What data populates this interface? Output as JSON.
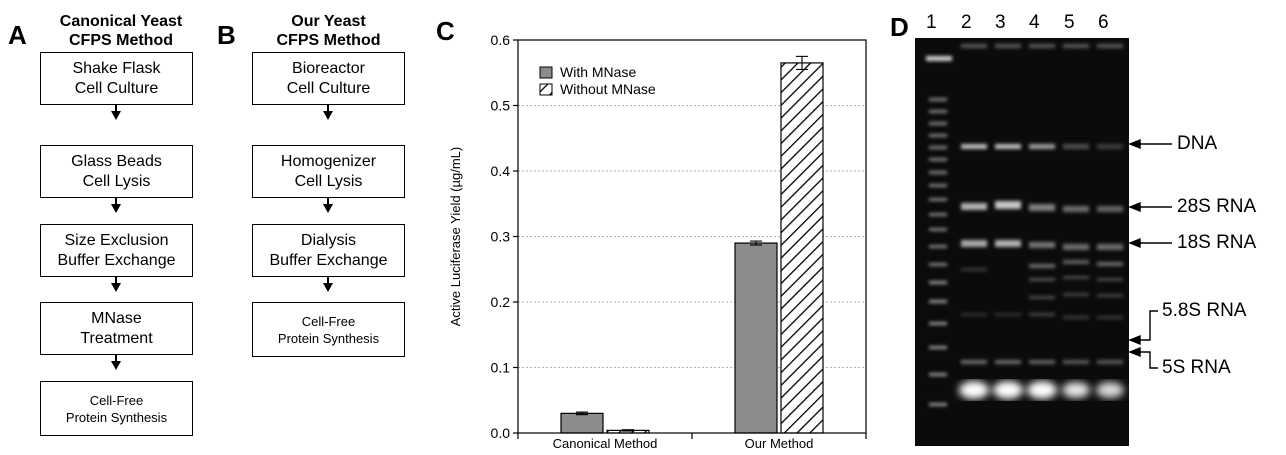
{
  "panel_a": {
    "letter": "A",
    "title_line1": "Canonical Yeast",
    "title_line2": "CFPS Method",
    "steps": [
      "Shake Flask\nCell Culture",
      "Glass Beads\nCell Lysis",
      "Size Exclusion\nBuffer Exchange",
      "MNase\nTreatment",
      "Cell-Free\nProtein Synthesis"
    ]
  },
  "panel_b": {
    "letter": "B",
    "title_line1": "Our Yeast",
    "title_line2": "CFPS Method",
    "steps": [
      "Bioreactor\nCell Culture",
      "Homogenizer\nCell Lysis",
      "Dialysis\nBuffer Exchange",
      "Cell-Free\nProtein Synthesis"
    ]
  },
  "panel_c": {
    "letter": "C",
    "chart_data": {
      "type": "bar",
      "categories": [
        "Canonical Method",
        "Our Method"
      ],
      "series": [
        {
          "name": "With MNase",
          "values": [
            0.03,
            0.29
          ],
          "errors": [
            0.002,
            0.003
          ],
          "color": "#8c8c8c",
          "pattern": "solid"
        },
        {
          "name": "Without MNase",
          "values": [
            0.004,
            0.565
          ],
          "errors": [
            0.001,
            0.01
          ],
          "color": "#ffffff",
          "pattern": "hatched"
        }
      ],
      "ylabel": "Active Luciferase Yield (µg/mL)",
      "ylim": [
        0,
        0.6
      ],
      "yticks": [
        "0.0",
        "0.1",
        "0.2",
        "0.3",
        "0.4",
        "0.5",
        "0.6"
      ],
      "grid": "horizontal-dotted",
      "legend_position": "top-left"
    }
  },
  "panel_d": {
    "letter": "D",
    "lanes": [
      "1",
      "2",
      "3",
      "4",
      "5",
      "6"
    ],
    "bands": [
      "DNA",
      "28S RNA",
      "18S RNA",
      "5.8S RNA",
      "5S RNA"
    ]
  }
}
